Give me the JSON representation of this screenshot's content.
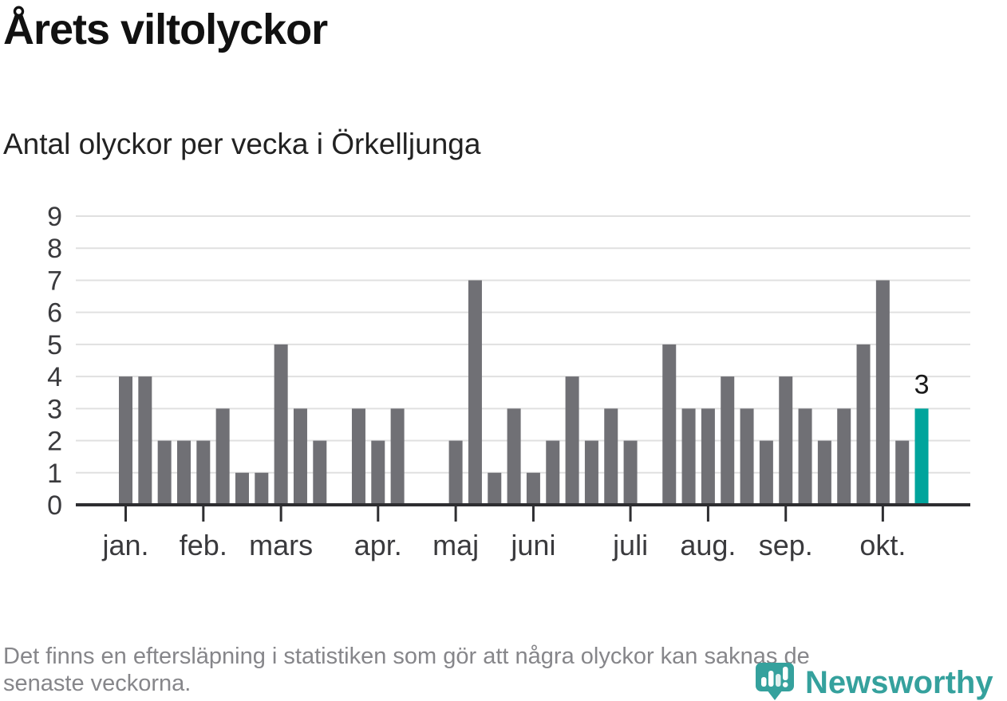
{
  "header": {
    "title": "Årets viltolyckor",
    "subtitle": "Antal olyckor per vecka i Örkelljunga"
  },
  "chart_data": {
    "type": "bar",
    "title": "Årets viltolyckor",
    "subtitle": "Antal olyckor per vecka i Örkelljunga",
    "xlabel": "",
    "ylabel": "",
    "ylim": [
      0,
      9
    ],
    "yticks": [
      0,
      1,
      2,
      3,
      4,
      5,
      6,
      7,
      8,
      9
    ],
    "grid": true,
    "legend": "none",
    "values": [
      4,
      4,
      2,
      2,
      2,
      3,
      1,
      1,
      5,
      3,
      2,
      0,
      3,
      2,
      3,
      0,
      0,
      2,
      7,
      1,
      3,
      1,
      2,
      4,
      2,
      3,
      2,
      0,
      5,
      3,
      3,
      4,
      3,
      2,
      4,
      3,
      2,
      3,
      5,
      7,
      2,
      3
    ],
    "month_ticks": [
      {
        "label": "jan.",
        "week_index": 1
      },
      {
        "label": "feb.",
        "week_index": 5
      },
      {
        "label": "mars",
        "week_index": 9
      },
      {
        "label": "apr.",
        "week_index": 14
      },
      {
        "label": "maj",
        "week_index": 18
      },
      {
        "label": "juni",
        "week_index": 22
      },
      {
        "label": "juli",
        "week_index": 27
      },
      {
        "label": "aug.",
        "week_index": 31
      },
      {
        "label": "sep.",
        "week_index": 35
      },
      {
        "label": "okt.",
        "week_index": 40
      }
    ],
    "highlight_last_bar": true,
    "last_value_label": "3"
  },
  "footer": {
    "note_line1": "Det finns en eftersläpning i statistiken som gör att några olyckor kan saknas de",
    "note_line2": "senaste veckorna.",
    "logo_text": "Newsworthy"
  },
  "colors": {
    "background": "#ffffff",
    "title": "#111111",
    "subtitle": "#222222",
    "bar": "#707075",
    "highlight": "#00a49c",
    "grid": "#e0e0e0",
    "axis": "#2e2e31",
    "axis_label": "#3a3a3d",
    "value_label": "#1a1a1a",
    "footnote": "#86868a",
    "brand": "#35a19d"
  }
}
